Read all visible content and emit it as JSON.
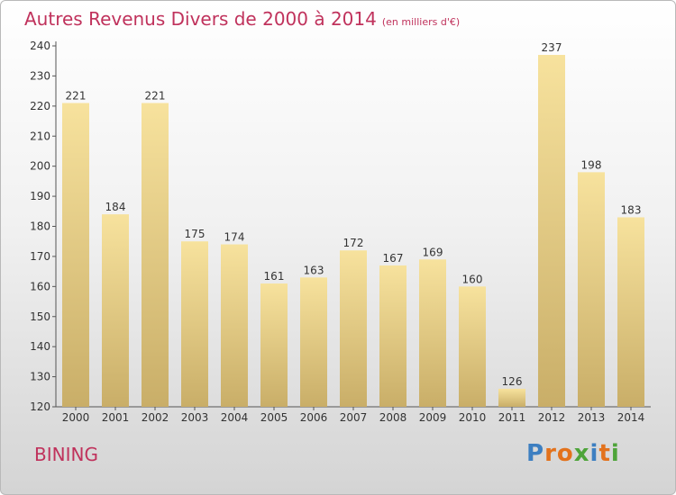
{
  "header": {
    "title": "Autres Revenus Divers de 2000 à 2014",
    "subtitle": "(en milliers d'€)"
  },
  "footer": {
    "commune": "BINING",
    "logo_text": "Proxiti",
    "logo_colors": [
      "#3d7fc1",
      "#e3721c",
      "#e3721c",
      "#4ea43a",
      "#3d7fc1",
      "#e3721c",
      "#4ea43a"
    ]
  },
  "colors": {
    "accent": "#c0325c",
    "bar_light": "#f7e29d",
    "bar_dark": "#c9ae68",
    "axis": "#555555"
  },
  "chart_data": {
    "type": "bar",
    "title": "Autres Revenus Divers de 2000 à 2014",
    "subtitle": "(en milliers d'€)",
    "categories": [
      "2000",
      "2001",
      "2002",
      "2003",
      "2004",
      "2005",
      "2006",
      "2007",
      "2008",
      "2009",
      "2010",
      "2011",
      "2012",
      "2013",
      "2014"
    ],
    "values": [
      221,
      184,
      221,
      175,
      174,
      161,
      163,
      172,
      167,
      169,
      160,
      126,
      237,
      198,
      183
    ],
    "ylim": [
      120,
      240
    ],
    "yticks": [
      120,
      130,
      140,
      150,
      160,
      170,
      180,
      190,
      200,
      210,
      220,
      230,
      240
    ],
    "xlabel": "",
    "ylabel": "",
    "grid": false,
    "legend": "none"
  }
}
